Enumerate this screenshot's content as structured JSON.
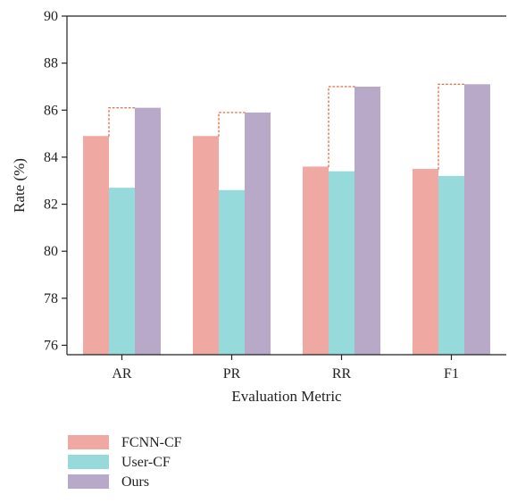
{
  "chart_data": {
    "type": "bar",
    "title": "",
    "xlabel": "Evaluation Metric",
    "ylabel": "Rate (%)",
    "ylim": [
      75.6,
      90
    ],
    "yticks": [
      76,
      78,
      80,
      82,
      84,
      86,
      88,
      90
    ],
    "categories": [
      "AR",
      "PR",
      "RR",
      "F1"
    ],
    "series": [
      {
        "name": "FCNN-CF",
        "color": "#f0a8a2",
        "values": [
          84.9,
          84.9,
          83.6,
          83.5
        ]
      },
      {
        "name": "User-CF",
        "color": "#96dadb",
        "values": [
          82.7,
          82.6,
          83.4,
          83.2
        ]
      },
      {
        "name": "Ours",
        "color": "#b7a9c7",
        "values": [
          86.1,
          85.9,
          87.0,
          87.1
        ]
      }
    ],
    "annotations": {
      "connector_color": "#e8734a",
      "connector_style": "dotted",
      "description_series": [
        "FCNN-CF",
        "Ours"
      ]
    },
    "legend_placement": "bottom-left",
    "grid": false
  }
}
